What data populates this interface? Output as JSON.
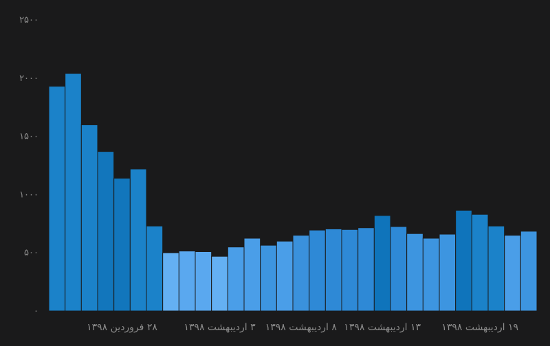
{
  "chart_data": {
    "type": "bar",
    "title": "",
    "xlabel": "",
    "ylabel": "",
    "ylim": [
      0,
      2500
    ],
    "grid": false,
    "legend": "none",
    "y_ticks": [
      {
        "value": 0,
        "label": "۰"
      },
      {
        "value": 500,
        "label": "۵۰۰"
      },
      {
        "value": 1000,
        "label": "۱۰۰۰"
      },
      {
        "value": 1500,
        "label": "۱۵۰۰"
      },
      {
        "value": 2000,
        "label": "۲۰۰۰"
      },
      {
        "value": 2500,
        "label": "۲۵۰۰"
      }
    ],
    "x_ticks": [
      {
        "label": "۲۸ فروردین ۱۳۹۸",
        "index": 4
      },
      {
        "label": "۳ اردیبهشت ۱۳۹۸",
        "index": 10
      },
      {
        "label": "۸ اردیبهشت ۱۳۹۸",
        "index": 15
      },
      {
        "label": "۱۳ اردیبهشت ۱۳۹۸",
        "index": 20
      },
      {
        "label": "۱۹ اردیبهشت ۱۳۹۸",
        "index": 26
      }
    ],
    "values": [
      1930,
      2040,
      1600,
      1370,
      1140,
      1220,
      730,
      500,
      515,
      510,
      470,
      550,
      625,
      565,
      600,
      650,
      695,
      705,
      700,
      715,
      820,
      725,
      665,
      625,
      660,
      865,
      830,
      730,
      650,
      685
    ],
    "bar_colors": [
      "#1b82c9",
      "#1b82c9",
      "#1b82c9",
      "#1276bc",
      "#1276bc",
      "#1b82c9",
      "#1b82c9",
      "#64b0f3",
      "#5aa8ef",
      "#5aa8ef",
      "#64b0f3",
      "#4a9ee8",
      "#4a9ee8",
      "#3d95e0",
      "#4a9ee8",
      "#3a91dc",
      "#2e89d6",
      "#2e89d6",
      "#2e89d6",
      "#2e89d6",
      "#0f74bb",
      "#2e89d6",
      "#3d95e0",
      "#3d95e0",
      "#3d95e0",
      "#0f74bb",
      "#1b82c9",
      "#1b82c9",
      "#4a9ee8",
      "#3d95e0"
    ],
    "colors": {
      "background": "#1a1a1b",
      "axis_text": "#8c8c8c",
      "bar_border": "#1a1a1b"
    }
  }
}
